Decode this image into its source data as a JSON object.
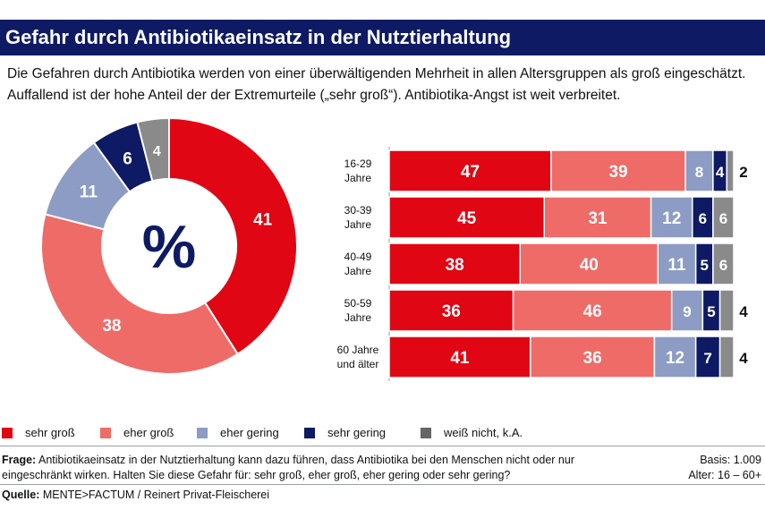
{
  "header": {
    "title": "Gefahr durch Antibiotikaeinsatz in der Nutztierhaltung",
    "subtitle": "Die Gefahren durch Antibiotika werden von einer überwältigenden Mehrheit in allen Altersgruppen als groß eingeschätzt. Auffallend ist der hohe Anteil der der Extremurteile („sehr groß“). Antibiotika-Angst ist weit verbreitet."
  },
  "colors": {
    "sehr_gross": "#e10613",
    "eher_gross": "#ef6b67",
    "eher_gering": "#8d9cc4",
    "sehr_gering": "#0e1a63",
    "weiss_nicht": "#8a8a8a"
  },
  "chart_data": [
    {
      "type": "pie",
      "variant": "donut",
      "center_label": "%",
      "categories": [
        "sehr groß",
        "eher groß",
        "eher gering",
        "sehr gering",
        "weiß nicht, k.A."
      ],
      "values": [
        41,
        38,
        11,
        6,
        4
      ]
    },
    {
      "type": "bar",
      "orientation": "horizontal",
      "stacked": true,
      "categories": [
        [
          "16-29",
          "Jahre"
        ],
        [
          "30-39",
          "Jahre"
        ],
        [
          "40-49",
          "Jahre"
        ],
        [
          "50-59",
          "Jahre"
        ],
        [
          "60 Jahre",
          "und älter"
        ]
      ],
      "series": [
        {
          "name": "sehr groß",
          "values": [
            47,
            45,
            38,
            36,
            41
          ]
        },
        {
          "name": "eher groß",
          "values": [
            39,
            31,
            40,
            46,
            36
          ]
        },
        {
          "name": "eher gering",
          "values": [
            8,
            12,
            11,
            9,
            12
          ]
        },
        {
          "name": "sehr gering",
          "values": [
            4,
            6,
            5,
            5,
            7
          ]
        },
        {
          "name": "weiß nicht, k.A.",
          "values": [
            2,
            6,
            6,
            4,
            4
          ]
        }
      ]
    }
  ],
  "legend": [
    {
      "label": "sehr groß",
      "color": "#e10613"
    },
    {
      "label": "eher groß",
      "color": "#ef6b67"
    },
    {
      "label": "eher gering",
      "color": "#8d9cc4"
    },
    {
      "label": "sehr gering",
      "color": "#0e1a63"
    },
    {
      "label": "weiß nicht, k.A.",
      "color": "#666666"
    }
  ],
  "footer": {
    "frage_label": "Frage:",
    "frage_text": "Antibiotikaeinsatz in der Nutztierhaltung kann dazu führen, dass Antibiotika bei den Menschen nicht oder nur eingeschränkt wirken. Halten Sie diese Gefahr für: sehr groß, eher groß, eher gering oder sehr gering?",
    "basis": "Basis: 1.009",
    "alter": "Alter: 16 – 60+",
    "quelle_label": "Quelle:",
    "quelle_text": "MENTE>FACTUM / Reinert Privat-Fleischerei"
  }
}
